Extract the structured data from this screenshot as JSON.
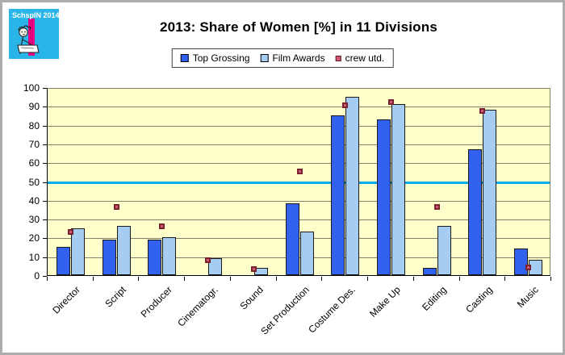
{
  "window": {
    "background": "#FFFFFF",
    "border_color": "#ACACAC"
  },
  "logo": {
    "text": "SchspIN 2014",
    "bg_color": "#29B5E8",
    "stripe_color": "#E6007E",
    "figure": "person-writing-illustration"
  },
  "title": "2013: Share of Women [%] in 11 Divisions",
  "legend": {
    "items": [
      {
        "label": "Top Grossing",
        "swatch": "dark-blue-square"
      },
      {
        "label": "Film Awards",
        "swatch": "light-blue-square"
      },
      {
        "label": "crew utd.",
        "swatch": "dark-red-small-square"
      }
    ]
  },
  "chart_data": {
    "type": "bar",
    "title": "2013: Share of Women [%] in 11 Divisions",
    "categories": [
      "Director",
      "Script",
      "Producer",
      "Cinematogr.",
      "Sound",
      "Set Production",
      "Costume Des.",
      "Make Up",
      "Editing",
      "Casting",
      "Music"
    ],
    "series": [
      {
        "name": "Top Grossing",
        "type": "bar",
        "color": "#3161EE",
        "values": [
          15,
          19,
          19,
          0,
          0,
          38,
          85,
          83,
          4,
          67,
          14
        ]
      },
      {
        "name": "Film Awards",
        "type": "bar",
        "color": "#A5CDF1",
        "values": [
          25,
          26,
          20,
          9,
          4,
          23,
          95,
          91,
          26,
          88,
          8
        ]
      },
      {
        "name": "crew utd.",
        "type": "scatter",
        "color": "#CE5B72",
        "marker_border": "#7C2130",
        "values": [
          24,
          37,
          27,
          9,
          4,
          56,
          91,
          93,
          37,
          88,
          5
        ]
      }
    ],
    "ylim": [
      0,
      100
    ],
    "yticks": [
      0,
      10,
      20,
      30,
      40,
      50,
      60,
      70,
      80,
      90,
      100
    ],
    "reference_line": {
      "value": 50,
      "color": "#00AEEF"
    },
    "plot_bg": "#FFFFCC",
    "gridline_color": "#81816A",
    "grid": true,
    "legend_position": "top-center",
    "x_label_rotation": -45
  }
}
